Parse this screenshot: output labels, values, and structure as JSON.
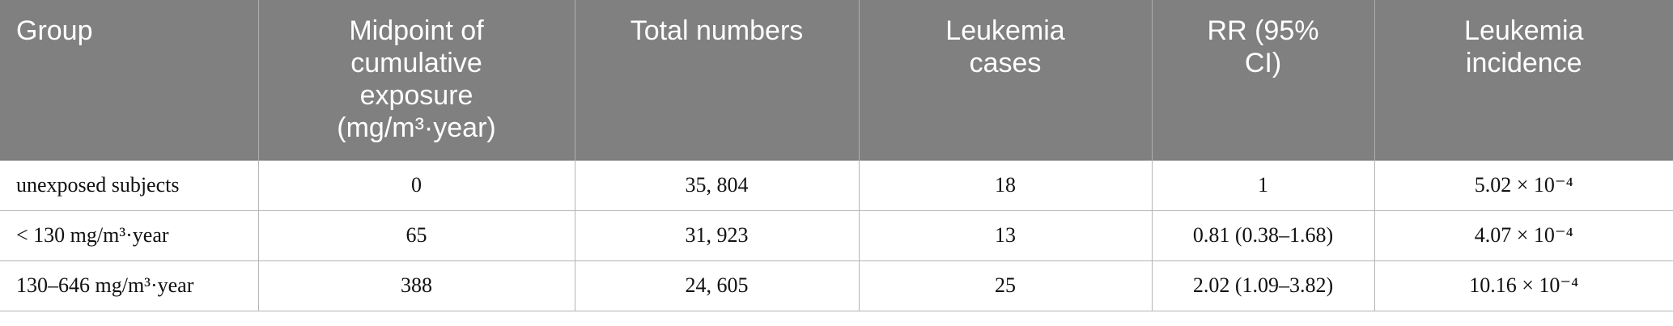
{
  "table": {
    "header": [
      "Group",
      "Midpoint of cumulative exposure (mg/m³·year)",
      "Total numbers",
      "Leukemia cases",
      "RR (95% CI)",
      "Leukemia incidence"
    ],
    "rows": [
      [
        "unexposed subjects",
        "0",
        "35, 804",
        "18",
        "1",
        "5.02 × 10⁻⁴"
      ],
      [
        "< 130 mg/m³·year",
        "65",
        "31, 923",
        "13",
        "0.81 (0.38–1.68)",
        "4.07 × 10⁻⁴"
      ],
      [
        "130–646 mg/m³·year",
        "388",
        "24, 605",
        "25",
        "2.02 (1.09–3.82)",
        "10.16 × 10⁻⁴"
      ]
    ]
  }
}
